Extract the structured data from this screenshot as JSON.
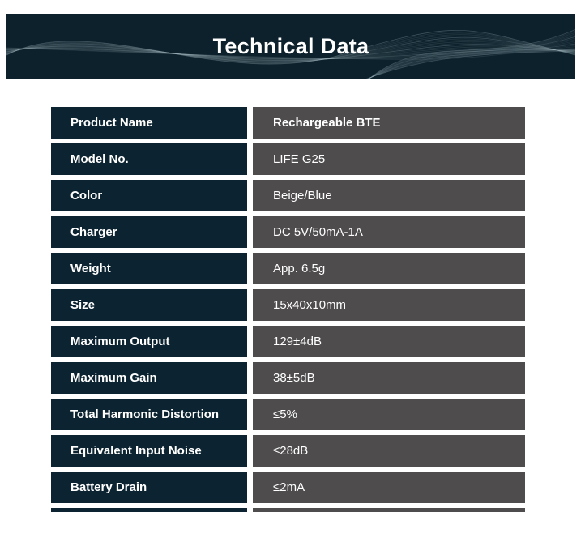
{
  "header": {
    "title": "Technical Data"
  },
  "table": {
    "rows": [
      {
        "label": "Product Name",
        "value": "Rechargeable BTE",
        "value_bold": true
      },
      {
        "label": "Model No.",
        "value": "LIFE G25",
        "value_bold": false
      },
      {
        "label": "Color",
        "value": "Beige/Blue",
        "value_bold": false
      },
      {
        "label": "Charger",
        "value": "DC 5V/50mA-1A",
        "value_bold": false
      },
      {
        "label": "Weight",
        "value": "App. 6.5g",
        "value_bold": false
      },
      {
        "label": "Size",
        "value": "15x40x10mm",
        "value_bold": false
      },
      {
        "label": "Maximum Output",
        "value": "129±4dB",
        "value_bold": false
      },
      {
        "label": "Maximum Gain",
        "value": "38±5dB",
        "value_bold": false
      },
      {
        "label": "Total Harmonic Distortion",
        "value": "≤5%",
        "value_bold": false
      },
      {
        "label": "Equivalent Input Noise",
        "value": "≤28dB",
        "value_bold": false
      },
      {
        "label": "Battery Drain",
        "value": "≤2mA",
        "value_bold": false
      }
    ]
  },
  "colors": {
    "banner_bg": "#0d212c",
    "label_cell_bg": "#0c2431",
    "value_cell_bg": "#4e4c4d",
    "page_bg": "#ffffff",
    "text_on_dark": "#ffffff",
    "wave_line": "#9fb6bf"
  }
}
